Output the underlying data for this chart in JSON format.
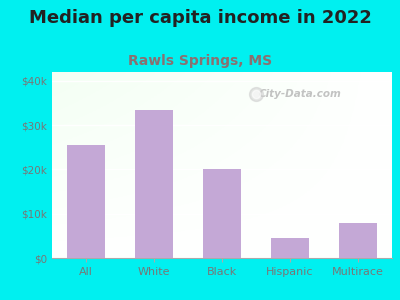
{
  "title": "Median per capita income in 2022",
  "subtitle": "Rawls Springs, MS",
  "categories": [
    "All",
    "White",
    "Black",
    "Hispanic",
    "Multirace"
  ],
  "values": [
    25500,
    33500,
    20000,
    4500,
    8000
  ],
  "bar_color": "#c4a8d6",
  "title_fontsize": 13,
  "subtitle_fontsize": 10,
  "subtitle_color": "#8a7070",
  "title_color": "#222222",
  "tick_color": "#777777",
  "bg_outer": "#00f0f0",
  "bg_inner": "#f0faf0",
  "watermark": "City-Data.com",
  "ylim": [
    0,
    42000
  ],
  "yticks": [
    0,
    10000,
    20000,
    30000,
    40000
  ],
  "ytick_labels": [
    "$0",
    "$10k",
    "$20k",
    "$30k",
    "$40k"
  ]
}
